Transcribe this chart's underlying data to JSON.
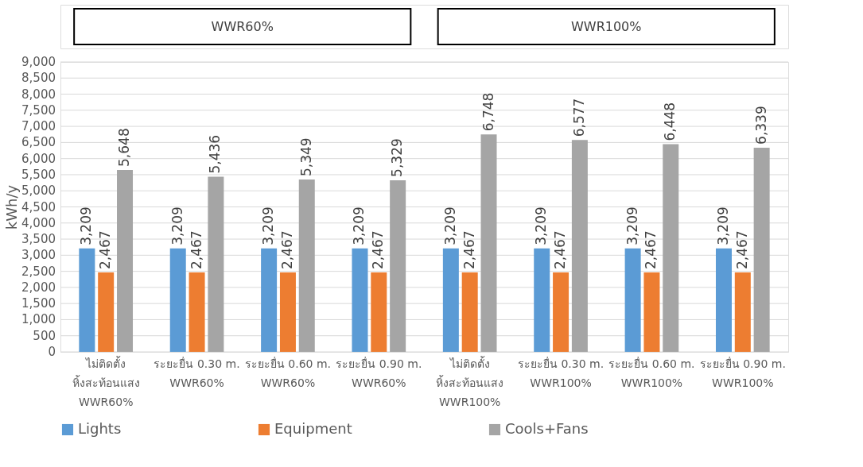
{
  "chart_data": {
    "type": "bar",
    "ylabel": "kWh/y",
    "categories": [
      "ไม่ติดตั้ง\nหิ้งสะท้อนแสง\nWWR60%",
      "ระยะยื่น 0.30 m.\nWWR60%",
      "ระยะยื่น 0.60 m.\nWWR60%",
      "ระยะยื่น 0.90 m.\nWWR60%",
      "ไม่ติดตั้ง\nหิ้งสะท้อนแสง\nWWR100%",
      "ระยะยื่น 0.30 m.\nWWR100%",
      "ระยะยื่น 0.60 m.\nWWR100%",
      "ระยะยื่น 0.90 m.\nWWR100%"
    ],
    "series": [
      {
        "name": "Lights",
        "color": "#5b9bd5",
        "values": [
          3209,
          3209,
          3209,
          3209,
          3209,
          3209,
          3209,
          3209
        ],
        "value_labels": [
          "3,209",
          "3,209",
          "3,209",
          "3,209",
          "3,209",
          "3,209",
          "3,209",
          "3,209"
        ]
      },
      {
        "name": "Equipment",
        "color": "#ed7d31",
        "values": [
          2467,
          2467,
          2467,
          2467,
          2467,
          2467,
          2467,
          2467
        ],
        "value_labels": [
          "2,467",
          "2,467",
          "2,467",
          "2,467",
          "2,467",
          "2,467",
          "2,467",
          "2,467"
        ]
      },
      {
        "name": "Cools+Fans",
        "color": "#a5a5a5",
        "values": [
          5648,
          5436,
          5349,
          5329,
          6748,
          6577,
          6448,
          6339
        ],
        "value_labels": [
          "5,648",
          "5,436",
          "5,349",
          "5,329",
          "6,748",
          "6,577",
          "6,448",
          "6,339"
        ]
      }
    ],
    "annotations": [
      "WWR60%",
      "WWR100%"
    ],
    "ylim": [
      0,
      9000
    ],
    "yticks": [
      0,
      500,
      {
        "value": 1000,
        "label": "1,000"
      },
      {
        "value": 1500,
        "label": "1,500"
      },
      {
        "value": 2000,
        "label": "2,000"
      },
      {
        "value": 2500,
        "label": "2,500"
      },
      {
        "value": 3000,
        "label": "3,000"
      },
      {
        "value": 3500,
        "label": "3,500"
      },
      {
        "value": 4000,
        "label": "4,000"
      },
      {
        "value": 4500,
        "label": "4,500"
      },
      {
        "value": 5000,
        "label": "5,000"
      },
      {
        "value": 5500,
        "label": "5,500"
      },
      {
        "value": 6000,
        "label": "6,000"
      },
      {
        "value": 6500,
        "label": "6,500"
      },
      {
        "value": 7000,
        "label": "7,000"
      },
      {
        "value": 7500,
        "label": "7,500"
      },
      {
        "value": 8000,
        "label": "8,000"
      },
      {
        "value": 8500,
        "label": "8,500"
      },
      {
        "value": 9000,
        "label": "9,000"
      }
    ],
    "grid": "y",
    "legend": "bottom"
  }
}
